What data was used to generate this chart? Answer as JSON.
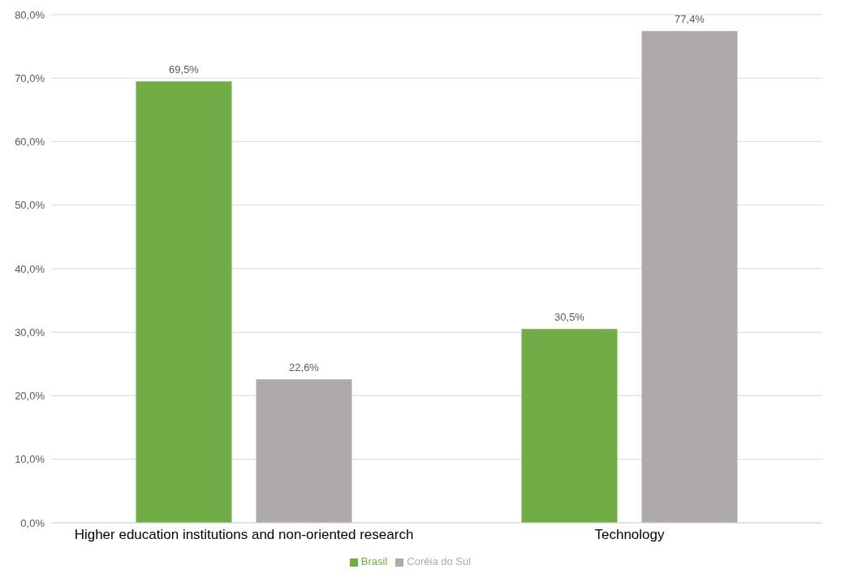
{
  "chart_data": {
    "type": "bar",
    "categories": [
      "Higher education institutions and non-oriented research",
      "Technology"
    ],
    "series": [
      {
        "name": "Brasil",
        "color": "#70ad47",
        "values": [
          69.5,
          30.5
        ],
        "value_labels": [
          "69,5%",
          "30,5%"
        ]
      },
      {
        "name": "Coréia do Sul",
        "color": "#aeaaaa",
        "values": [
          22.6,
          77.4
        ],
        "value_labels": [
          "22,6%",
          "77,4%"
        ]
      }
    ],
    "ylim": [
      0,
      80
    ],
    "yticks": [
      {
        "value": 0,
        "label": "0,0%"
      },
      {
        "value": 10,
        "label": "10,0%"
      },
      {
        "value": 20,
        "label": "20,0%"
      },
      {
        "value": 30,
        "label": "30,0%"
      },
      {
        "value": 40,
        "label": "40,0%"
      },
      {
        "value": 50,
        "label": "50,0%"
      },
      {
        "value": 60,
        "label": "60,0%"
      },
      {
        "value": 70,
        "label": "70,0%"
      },
      {
        "value": 80,
        "label": "80,0%"
      }
    ],
    "grid": "y",
    "legend": "bottom"
  }
}
